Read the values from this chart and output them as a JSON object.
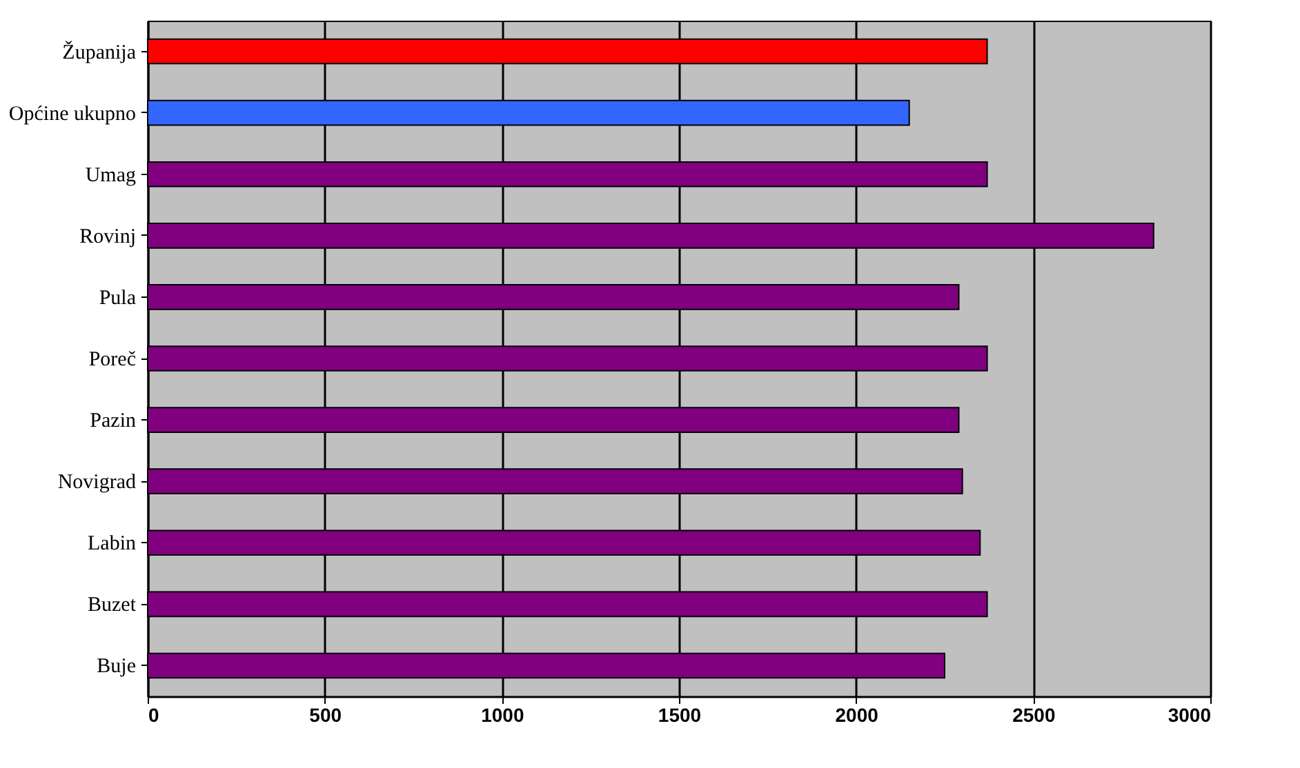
{
  "chart_data": {
    "type": "bar",
    "orientation": "horizontal",
    "categories": [
      "Županija",
      "Općine ukupno",
      "Umag",
      "Rovinj",
      "Pula",
      "Poreč",
      "Pazin",
      "Novigrad",
      "Labin",
      "Buzet",
      "Buje"
    ],
    "values": [
      2370,
      2150,
      2370,
      2840,
      2290,
      2370,
      2290,
      2300,
      2350,
      2370,
      2250
    ],
    "colors": [
      "#ff0000",
      "#3366ff",
      "#800080",
      "#800080",
      "#800080",
      "#800080",
      "#800080",
      "#800080",
      "#800080",
      "#800080",
      "#800080"
    ],
    "xlim": [
      0,
      3000
    ],
    "xticks": [
      0,
      500,
      1000,
      1500,
      2000,
      2500,
      3000
    ],
    "grid": "x"
  }
}
